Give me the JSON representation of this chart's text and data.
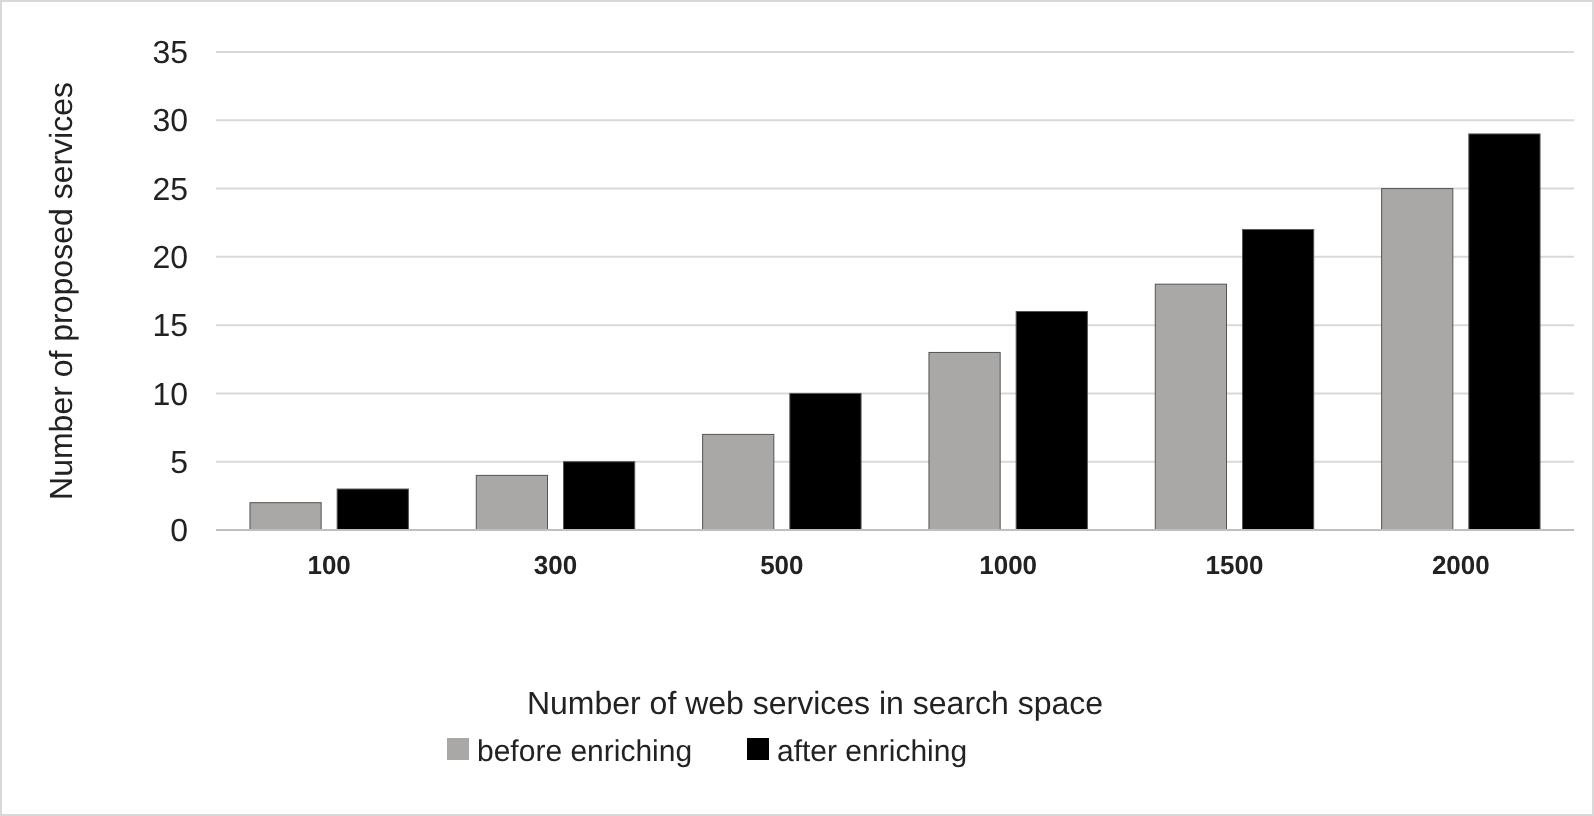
{
  "chart_data": {
    "type": "bar",
    "xlabel": "Number  of web services in search space",
    "ylabel": "Number  of proposed services",
    "categories": [
      "100",
      "300",
      "500",
      "1000",
      "1500",
      "2000"
    ],
    "series": [
      {
        "name": "before enriching",
        "color": "#aaa8a6",
        "values": [
          2,
          4,
          7,
          13,
          18,
          25
        ]
      },
      {
        "name": "after enriching",
        "color": "#000000",
        "values": [
          3,
          5,
          10,
          16,
          22,
          29
        ]
      }
    ],
    "ylim": [
      0,
      35
    ],
    "yticks": [
      0,
      5,
      10,
      15,
      20,
      25,
      30,
      35
    ],
    "grid": "y",
    "legend": "bottom"
  }
}
